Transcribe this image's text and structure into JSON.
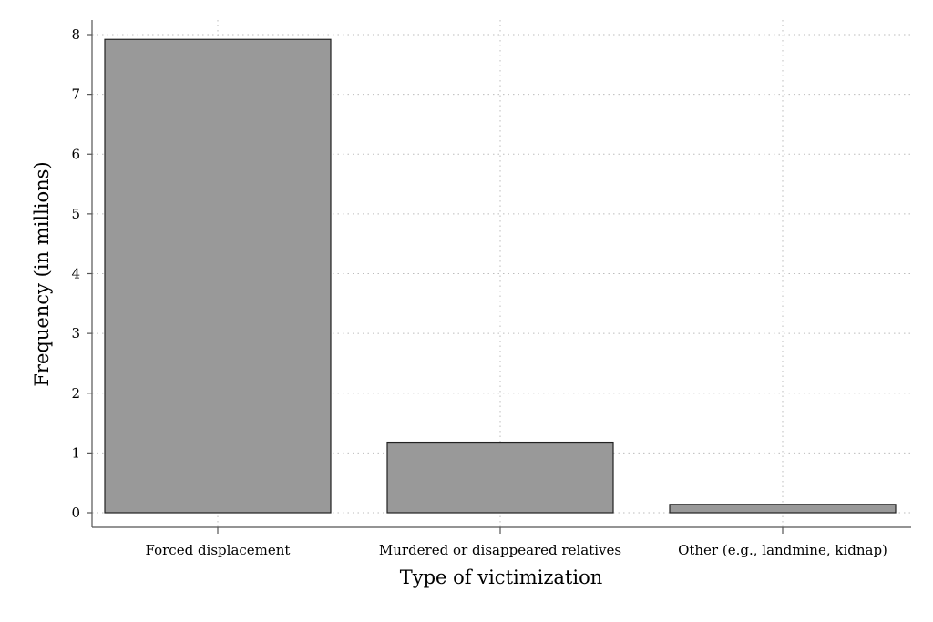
{
  "chart_data": {
    "type": "bar",
    "categories": [
      "Forced displacement",
      "Murdered or disappeared relatives",
      "Other (e.g., landmine, kidnap)"
    ],
    "values": [
      7.92,
      1.18,
      0.14
    ],
    "title": "",
    "xlabel": "Type of victimization",
    "ylabel": "Frequency (in millions)",
    "ylim": [
      0,
      8
    ],
    "yticks": [
      "0",
      "1",
      "2",
      "3",
      "4",
      "5",
      "6",
      "7",
      "8"
    ],
    "grid": true,
    "bar_color": "#999999"
  }
}
